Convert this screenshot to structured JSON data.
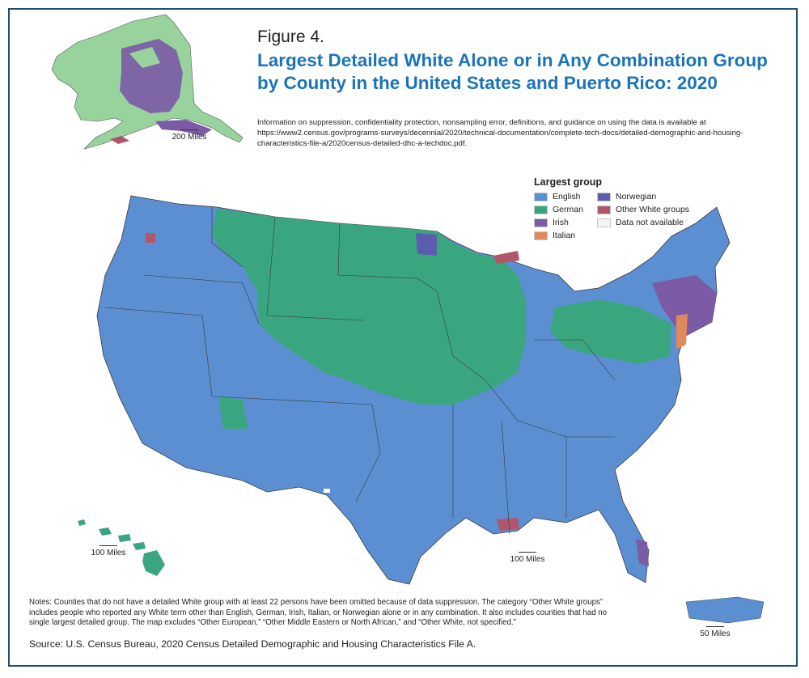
{
  "figure": {
    "label": "Figure 4.",
    "title": "Largest Detailed White Alone or in Any Combination Group by County in the United States and Puerto Rico: 2020",
    "info": "Information on suppression, confidentiality protection, nonsampling error, definitions, and guidance on using the data is available at https://www2.census.gov/programs-surveys/decennial/2020/technical-documentation/complete-tech-docs/detailed-demographic-and-housing-characteristics-file-a/2020census-detailed-dhc-a-techdoc.pdf."
  },
  "legend": {
    "title": "Largest group",
    "items": [
      {
        "label": "English",
        "color": "#5b8fd1"
      },
      {
        "label": "Norwegian",
        "color": "#5d5db0"
      },
      {
        "label": "German",
        "color": "#3aa67f"
      },
      {
        "label": "Other White groups",
        "color": "#b0566a"
      },
      {
        "label": "Irish",
        "color": "#7b5aa6"
      },
      {
        "label": "Data not available",
        "color": "#f4f4f4"
      },
      {
        "label": "Italian",
        "color": "#e08a5a"
      }
    ]
  },
  "scales": {
    "alaska": "200 Miles",
    "hawaii": "100 Miles",
    "mainland": "100 Miles",
    "puerto_rico": "50 Miles"
  },
  "notes": "Notes: Counties that do not have a detailed White group with at least 22 persons have been omitted because of data suppression. The category “Other White groups” includes people who reported any White term other than English, German, Irish, Italian, or Norwegian alone or in any combination. It also includes counties that had no single largest detailed group. The map excludes “Other European,” “Other Middle Eastern or North African,” and “Other White, not specified.”",
  "source": "Source: U.S. Census Bureau, 2020 Census Detailed Demographic and Housing Characteristics File A."
}
